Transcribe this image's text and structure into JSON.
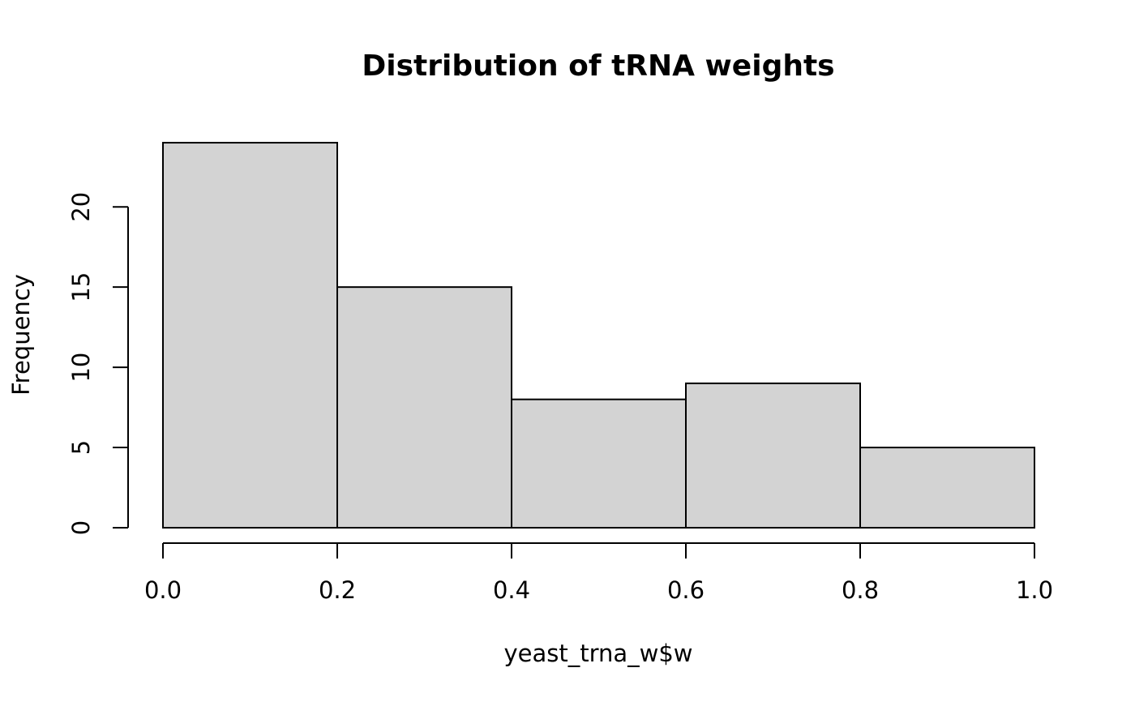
{
  "chart_data": {
    "type": "bar",
    "title": "Distribution of tRNA weights",
    "xlabel": "yeast_trna_w$w",
    "ylabel": "Frequency",
    "bins": [
      {
        "start": 0.0,
        "end": 0.2,
        "count": 24
      },
      {
        "start": 0.2,
        "end": 0.4,
        "count": 15
      },
      {
        "start": 0.4,
        "end": 0.6,
        "count": 8
      },
      {
        "start": 0.6,
        "end": 0.8,
        "count": 9
      },
      {
        "start": 0.8,
        "end": 1.0,
        "count": 5
      }
    ],
    "xlim": [
      0.0,
      1.0
    ],
    "ylim": [
      0,
      24
    ],
    "x_ticks": [
      0.0,
      0.2,
      0.4,
      0.6,
      0.8,
      1.0
    ],
    "x_tick_labels": [
      "0.0",
      "0.2",
      "0.4",
      "0.6",
      "0.8",
      "1.0"
    ],
    "y_ticks": [
      0,
      5,
      10,
      15,
      20
    ],
    "y_tick_labels": [
      "0",
      "5",
      "10",
      "15",
      "20"
    ],
    "grid": false,
    "legend": "none",
    "colors": {
      "bar_fill": "#d3d3d3",
      "bar_stroke": "#000000",
      "axis": "#000000",
      "background": "#ffffff"
    }
  }
}
